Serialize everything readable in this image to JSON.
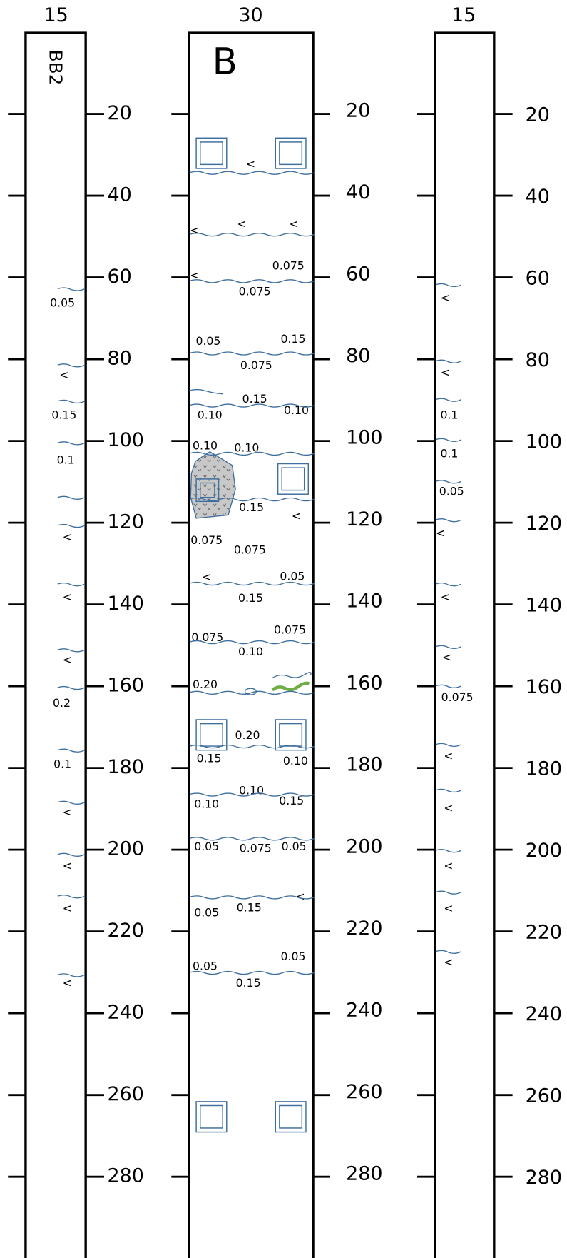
{
  "columns": [
    {
      "width_label": "15",
      "title": "BB2",
      "depth_labels": [
        "20",
        "40",
        "60",
        "80",
        "100",
        "120",
        "140",
        "160",
        "180",
        "200",
        "220",
        "240",
        "260",
        "280"
      ],
      "annotations": [
        "0.05",
        "<",
        "0.15",
        "0.1",
        "<",
        "<",
        "<",
        "0.2",
        "0.1",
        "<",
        "<",
        "<",
        "<"
      ]
    },
    {
      "width_label": "30",
      "title": "B",
      "depth_labels": [
        "20",
        "40",
        "60",
        "80",
        "100",
        "120",
        "140",
        "160",
        "180",
        "200",
        "220",
        "240",
        "260",
        "280"
      ],
      "annotations": [
        "<",
        "<",
        "<",
        "<",
        "<",
        "0.075",
        "0.075",
        "0.05",
        "0.15",
        "0.075",
        "0.15",
        "0.10",
        "0.10",
        "0.10",
        "0.10",
        "0.15",
        "<",
        "0.075",
        "0.075",
        "<",
        "0.05",
        "0.15",
        "0.075",
        "0.075",
        "0.10",
        "0.20",
        "0.20",
        "0.15",
        "0.10",
        "0.10",
        "0.10",
        "0.15",
        "0.05",
        "0.075",
        "0.05",
        "0.05",
        "0.15",
        "<",
        "0.05",
        "0.05",
        "0.15"
      ]
    },
    {
      "width_label": "15",
      "depth_labels": [
        "20",
        "40",
        "60",
        "80",
        "100",
        "120",
        "140",
        "160",
        "180",
        "200",
        "220",
        "240",
        "260",
        "280"
      ],
      "annotations": [
        "<",
        "<",
        "0.1",
        "0.1",
        "0.05",
        "<",
        "<",
        "<",
        "0.075",
        "<",
        "<",
        "<",
        "<",
        "<"
      ]
    }
  ]
}
